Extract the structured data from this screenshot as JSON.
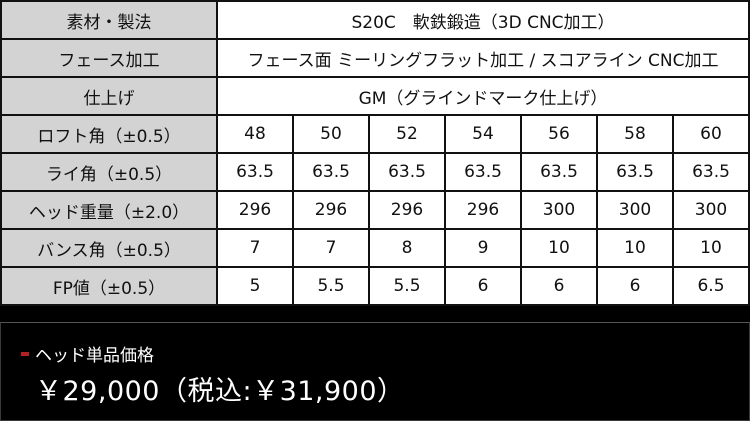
{
  "spec_table": {
    "rows_full": [
      {
        "label": "素材・製法",
        "value": "S20C　軟鉄鍛造（3D CNC加工）"
      },
      {
        "label": "フェース加工",
        "value": "フェース面 ミーリングフラット加工 / スコアライン CNC加工"
      },
      {
        "label": "仕上げ",
        "value": "GM（グラインドマーク仕上げ）"
      }
    ],
    "rows_grid": [
      {
        "label": "ロフト角（±0.5）",
        "values": [
          "48",
          "50",
          "52",
          "54",
          "56",
          "58",
          "60"
        ]
      },
      {
        "label": "ライ角（±0.5）",
        "values": [
          "63.5",
          "63.5",
          "63.5",
          "63.5",
          "63.5",
          "63.5",
          "63.5"
        ]
      },
      {
        "label": "ヘッド重量（±2.0）",
        "values": [
          "296",
          "296",
          "296",
          "296",
          "300",
          "300",
          "300"
        ]
      },
      {
        "label": "バンス角（±0.5）",
        "values": [
          "7",
          "7",
          "8",
          "9",
          "10",
          "10",
          "10"
        ]
      },
      {
        "label": "FP値（±0.5）",
        "values": [
          "5",
          "5.5",
          "5.5",
          "6",
          "6",
          "6",
          "6.5"
        ]
      }
    ]
  },
  "price": {
    "title": "ヘッド単品価格",
    "value": "￥29,000（税込:￥31,900）",
    "accent_color": "#b22222"
  }
}
